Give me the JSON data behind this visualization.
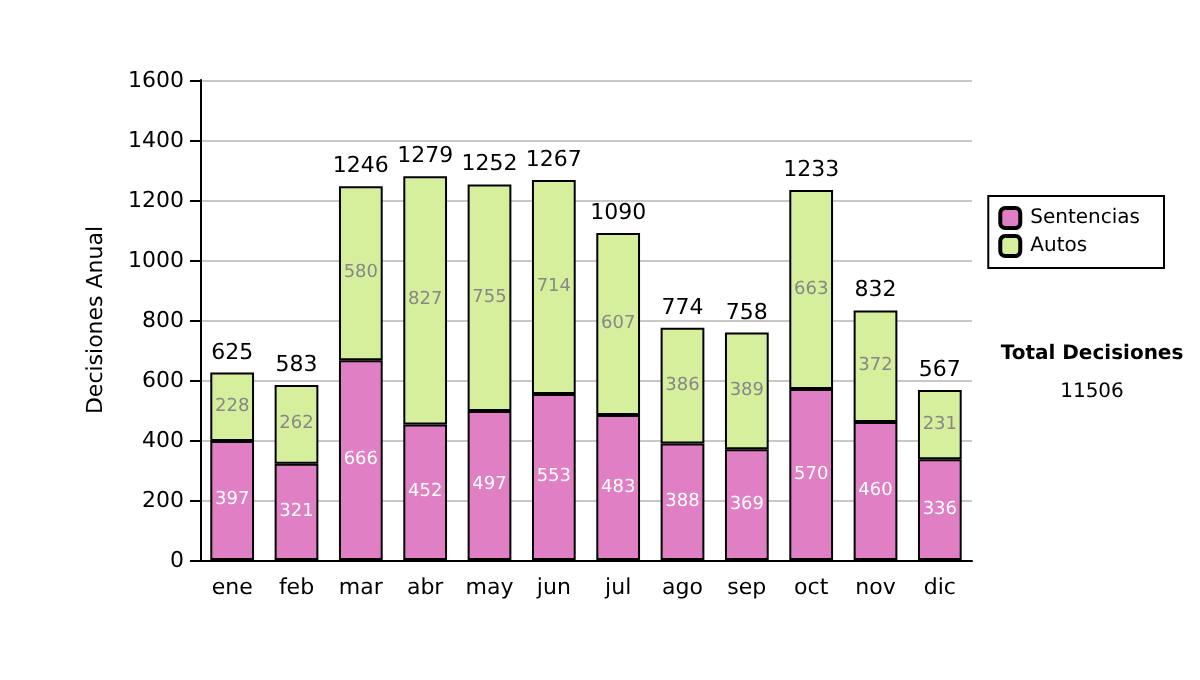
{
  "chart_data": {
    "type": "bar",
    "stacked": true,
    "ylabel": "Decisiones Anual",
    "categories": [
      "ene",
      "feb",
      "mar",
      "abr",
      "may",
      "jun",
      "jul",
      "ago",
      "sep",
      "oct",
      "nov",
      "dic"
    ],
    "series": [
      {
        "name": "Sentencias",
        "color": "#e07fc4",
        "values": [
          397,
          321,
          666,
          452,
          497,
          553,
          483,
          388,
          369,
          570,
          460,
          336
        ]
      },
      {
        "name": "Autos",
        "color": "#d6ef9c",
        "values": [
          228,
          262,
          580,
          827,
          755,
          714,
          607,
          386,
          389,
          663,
          372,
          231
        ]
      }
    ],
    "totals": [
      "625",
      "583",
      "1246",
      "1279",
      "1252",
      "1267",
      "1090",
      "774",
      "758",
      "1233",
      "832",
      "567"
    ],
    "data_labels": true,
    "ylim": [
      0,
      1600
    ],
    "yticks": [
      0,
      200,
      400,
      600,
      800,
      1000,
      1200,
      1400,
      1600
    ],
    "grid": "y",
    "legend": "right",
    "annotations": [
      "Total Decisiones",
      "11506"
    ]
  }
}
